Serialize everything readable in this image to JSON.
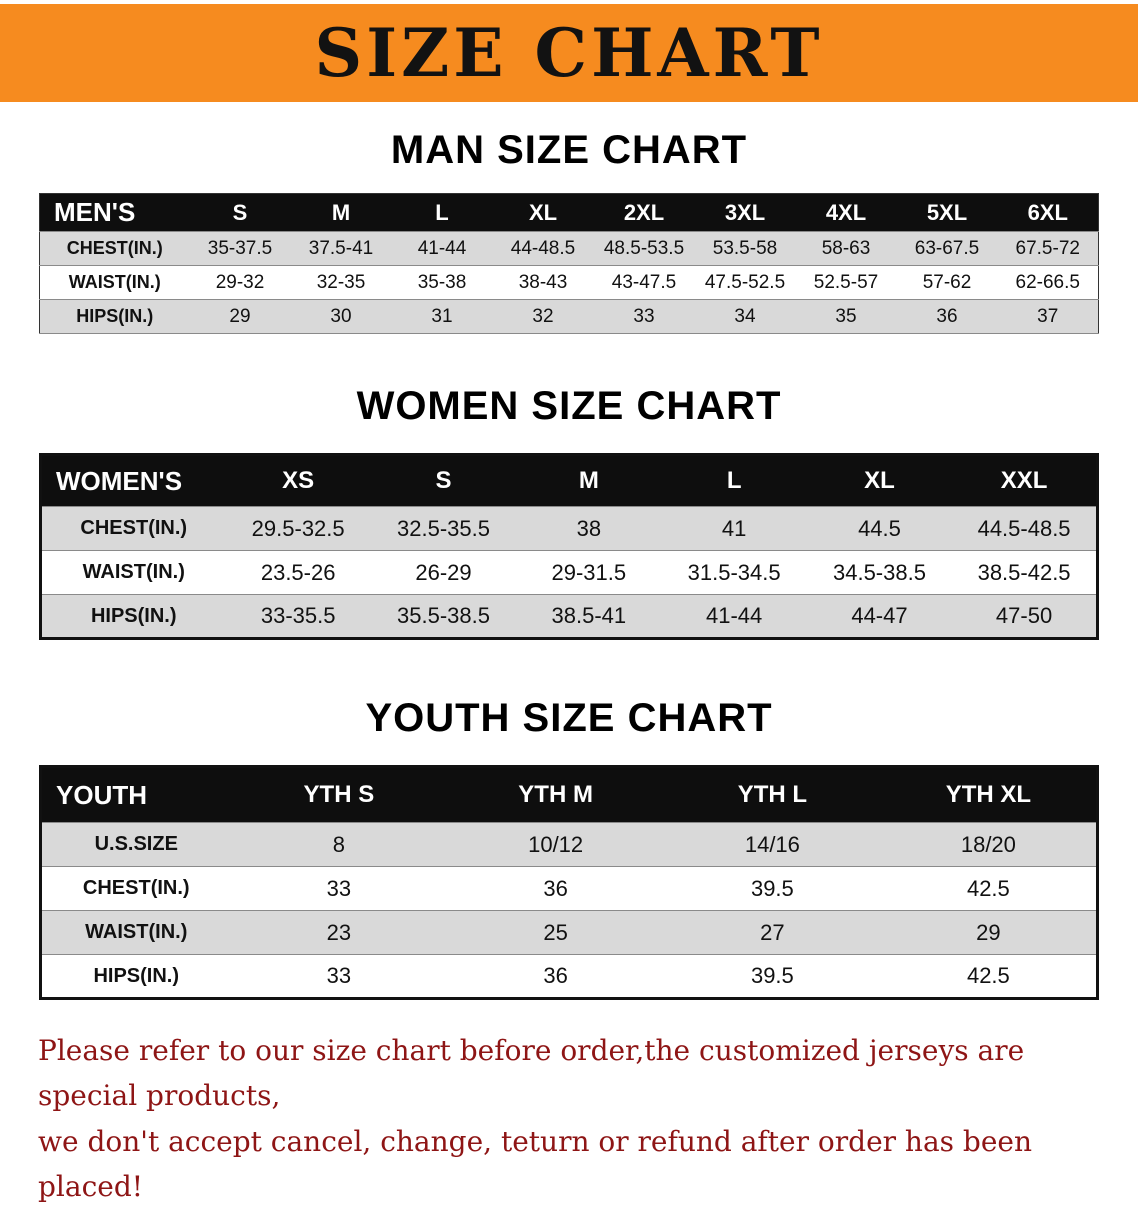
{
  "banner": {
    "title": "SIZE CHART",
    "bg_color": "#F68B1F",
    "title_color": "#121212"
  },
  "sections": [
    {
      "id": "men",
      "heading": "MAN SIZE CHART",
      "table": {
        "header": [
          "MEN'S",
          "S",
          "M",
          "L",
          "XL",
          "2XL",
          "3XL",
          "4XL",
          "5XL",
          "6XL"
        ],
        "rows": [
          [
            "CHEST(IN.)",
            "35-37.5",
            "37.5-41",
            "41-44",
            "44-48.5",
            "48.5-53.5",
            "53.5-58",
            "58-63",
            "63-67.5",
            "67.5-72"
          ],
          [
            "WAIST(IN.)",
            "29-32",
            "32-35",
            "35-38",
            "38-43",
            "43-47.5",
            "47.5-52.5",
            "52.5-57",
            "57-62",
            "62-66.5"
          ],
          [
            "HIPS(IN.)",
            "29",
            "30",
            "31",
            "32",
            "33",
            "34",
            "35",
            "36",
            "37"
          ]
        ]
      }
    },
    {
      "id": "women",
      "heading": "WOMEN SIZE CHART",
      "table": {
        "header": [
          "WOMEN'S",
          "XS",
          "S",
          "M",
          "L",
          "XL",
          "XXL"
        ],
        "rows": [
          [
            "CHEST(IN.)",
            "29.5-32.5",
            "32.5-35.5",
            "38",
            "41",
            "44.5",
            "44.5-48.5"
          ],
          [
            "WAIST(IN.)",
            "23.5-26",
            "26-29",
            "29-31.5",
            "31.5-34.5",
            "34.5-38.5",
            "38.5-42.5"
          ],
          [
            "HIPS(IN.)",
            "33-35.5",
            "35.5-38.5",
            "38.5-41",
            "41-44",
            "44-47",
            "47-50"
          ]
        ]
      }
    },
    {
      "id": "youth",
      "heading": "YOUTH SIZE CHART",
      "table": {
        "header": [
          "YOUTH",
          "YTH S",
          "YTH M",
          "YTH L",
          "YTH XL"
        ],
        "rows": [
          [
            "U.S.SIZE",
            "8",
            "10/12",
            "14/16",
            "18/20"
          ],
          [
            "CHEST(IN.)",
            "33",
            "36",
            "39.5",
            "42.5"
          ],
          [
            "WAIST(IN.)",
            "23",
            "25",
            "27",
            "29"
          ],
          [
            "HIPS(IN.)",
            "33",
            "36",
            "39.5",
            "42.5"
          ]
        ]
      }
    }
  ],
  "disclaimer": {
    "color": "#8E1515",
    "lines": [
      "Please refer to our size chart before order,the customized jerseys are special products,",
      "we don't accept cancel, change, teturn or refund after order has been placed!"
    ]
  }
}
